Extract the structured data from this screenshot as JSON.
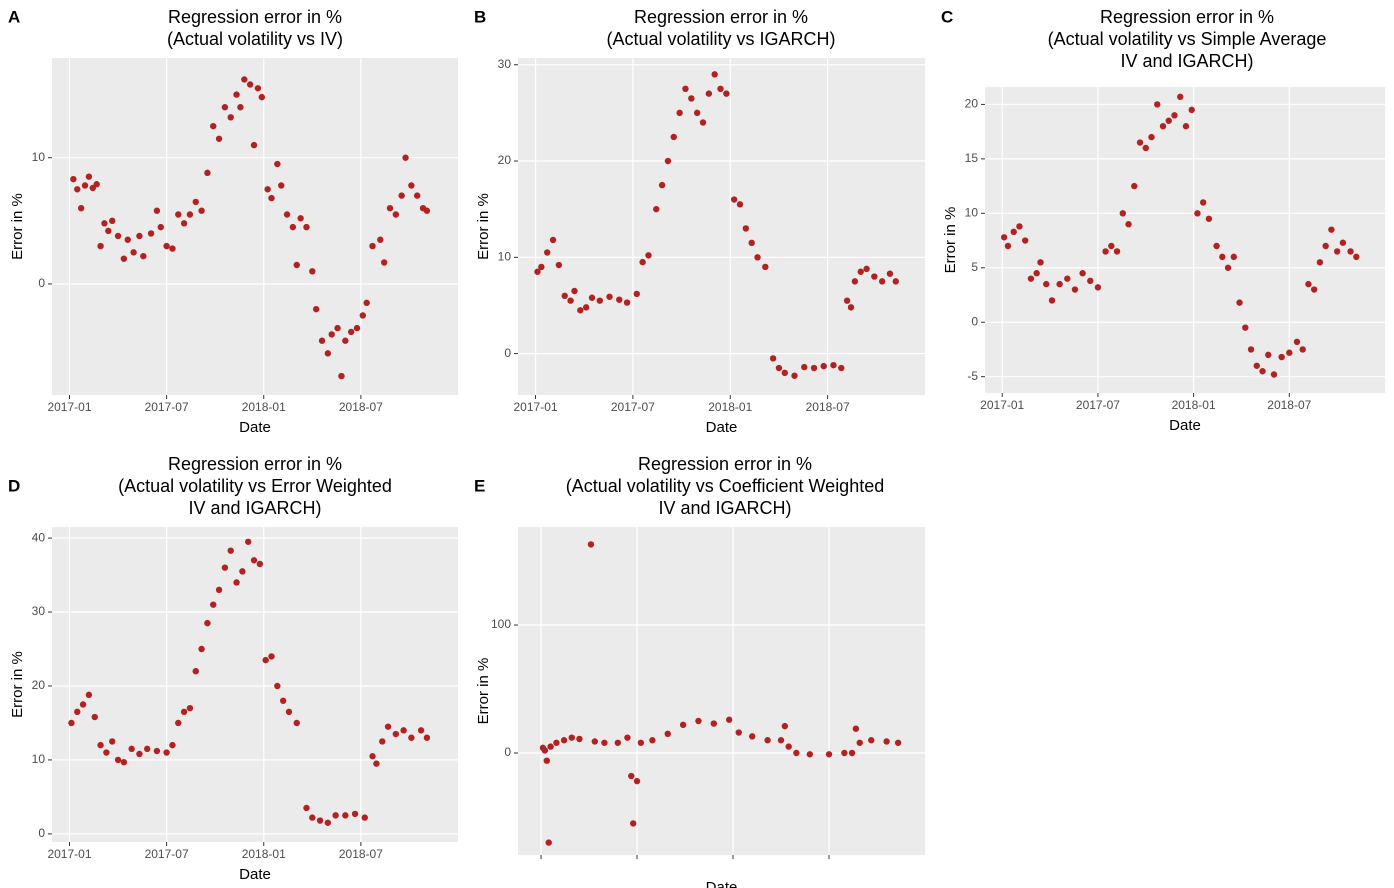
{
  "chart_data": [
    {
      "panel": "A",
      "type": "scatter",
      "title": [
        "Regression error in %",
        "(Actual volatility vs IV)"
      ],
      "x_label": "Date",
      "y_label": "Error in %",
      "color": "#b22222",
      "xlim": [
        2016.91,
        2019.0
      ],
      "ylim": [
        -8.8,
        17.9
      ],
      "xticks": [
        {
          "value": 2017.0,
          "label": "2017-01"
        },
        {
          "value": 2017.5,
          "label": "2017-07"
        },
        {
          "value": 2018.0,
          "label": "2018-01"
        },
        {
          "value": 2018.5,
          "label": "2018-07"
        }
      ],
      "yticks": [
        0,
        10
      ],
      "grid": true,
      "x": [
        2017.02,
        2017.04,
        2017.06,
        2017.08,
        2017.1,
        2017.12,
        2017.14,
        2017.16,
        2017.18,
        2017.2,
        2017.22,
        2017.25,
        2017.28,
        2017.3,
        2017.33,
        2017.36,
        2017.38,
        2017.42,
        2017.45,
        2017.47,
        2017.5,
        2017.53,
        2017.56,
        2017.59,
        2017.62,
        2017.65,
        2017.68,
        2017.71,
        2017.74,
        2017.77,
        2017.8,
        2017.83,
        2017.86,
        2017.88,
        2017.9,
        2017.93,
        2017.95,
        2017.97,
        2017.99,
        2018.02,
        2018.04,
        2018.07,
        2018.09,
        2018.12,
        2018.15,
        2018.17,
        2018.19,
        2018.22,
        2018.25,
        2018.27,
        2018.3,
        2018.33,
        2018.35,
        2018.38,
        2018.4,
        2018.42,
        2018.45,
        2018.48,
        2018.51,
        2018.53,
        2018.56,
        2018.6,
        2018.62,
        2018.65,
        2018.68,
        2018.71,
        2018.73,
        2018.76,
        2018.79,
        2018.82,
        2018.84
      ],
      "values": [
        8.3,
        7.5,
        6.0,
        7.8,
        8.5,
        7.6,
        7.9,
        3.0,
        4.8,
        4.2,
        5.0,
        3.8,
        2.0,
        3.5,
        2.5,
        3.8,
        2.2,
        4.0,
        5.8,
        4.5,
        3.0,
        2.8,
        5.5,
        4.8,
        5.5,
        6.5,
        5.8,
        8.8,
        12.5,
        11.5,
        14.0,
        13.2,
        15.0,
        14.0,
        16.2,
        15.8,
        11.0,
        15.5,
        14.8,
        7.5,
        6.8,
        9.5,
        7.8,
        5.5,
        4.5,
        1.5,
        5.2,
        4.5,
        1.0,
        -2.0,
        -4.5,
        -5.5,
        -4.0,
        -3.5,
        -7.3,
        -4.5,
        -3.8,
        -3.5,
        -2.5,
        -1.5,
        3.0,
        3.5,
        1.7,
        6.0,
        5.5,
        7.0,
        10.0,
        7.8,
        7.0,
        6.0,
        5.8
      ]
    },
    {
      "panel": "B",
      "type": "scatter",
      "title": [
        "Regression error in %",
        "(Actual volatility vs IGARCH)"
      ],
      "x_label": "Date",
      "y_label": "Error in %",
      "color": "#b22222",
      "xlim": [
        2016.91,
        2019.0
      ],
      "ylim": [
        -4.3,
        30.7
      ],
      "xticks": [
        {
          "value": 2017.0,
          "label": "2017-01"
        },
        {
          "value": 2017.5,
          "label": "2017-07"
        },
        {
          "value": 2018.0,
          "label": "2018-01"
        },
        {
          "value": 2018.5,
          "label": "2018-07"
        }
      ],
      "yticks": [
        0,
        10,
        20,
        30
      ],
      "grid": true,
      "x": [
        2017.01,
        2017.03,
        2017.06,
        2017.09,
        2017.12,
        2017.15,
        2017.18,
        2017.2,
        2017.23,
        2017.26,
        2017.29,
        2017.33,
        2017.38,
        2017.43,
        2017.47,
        2017.52,
        2017.55,
        2017.58,
        2017.62,
        2017.65,
        2017.68,
        2017.71,
        2017.74,
        2017.77,
        2017.8,
        2017.83,
        2017.86,
        2017.89,
        2017.92,
        2017.95,
        2017.98,
        2018.02,
        2018.05,
        2018.08,
        2018.11,
        2018.14,
        2018.18,
        2018.22,
        2018.25,
        2018.28,
        2018.33,
        2018.38,
        2018.43,
        2018.48,
        2018.53,
        2018.57,
        2018.6,
        2018.62,
        2018.64,
        2018.67,
        2018.7,
        2018.74,
        2018.78,
        2018.82,
        2018.85
      ],
      "values": [
        8.5,
        9,
        10.5,
        11.8,
        9.2,
        6,
        5.5,
        6.5,
        4.5,
        4.8,
        5.8,
        5.5,
        5.9,
        5.6,
        5.3,
        6.2,
        9.5,
        10.2,
        15,
        17.5,
        20,
        22.5,
        25,
        27.5,
        26.5,
        25,
        24,
        27,
        29,
        27.5,
        27,
        16,
        15.5,
        13,
        11.5,
        10,
        9,
        -0.5,
        -1.5,
        -2,
        -2.3,
        -1.4,
        -1.5,
        -1.3,
        -1.2,
        -1.5,
        5.5,
        4.8,
        7.5,
        8.5,
        8.8,
        8,
        7.5,
        8.3,
        7.5
      ]
    },
    {
      "panel": "C",
      "type": "scatter",
      "title": [
        "Regression error in %",
        "(Actual volatility vs Simple Average",
        "IV and IGARCH)"
      ],
      "x_label": "Date",
      "y_label": "Error in %",
      "color": "#b22222",
      "xlim": [
        2016.91,
        2019.0
      ],
      "ylim": [
        -6.5,
        21.6
      ],
      "xticks": [
        {
          "value": 2017.0,
          "label": "2017-01"
        },
        {
          "value": 2017.5,
          "label": "2017-07"
        },
        {
          "value": 2018.0,
          "label": "2018-01"
        },
        {
          "value": 2018.5,
          "label": "2018-07"
        }
      ],
      "yticks": [
        -5,
        0,
        5,
        10,
        15,
        20
      ],
      "grid": true,
      "x": [
        2017.01,
        2017.03,
        2017.06,
        2017.09,
        2017.12,
        2017.15,
        2017.18,
        2017.2,
        2017.23,
        2017.26,
        2017.3,
        2017.34,
        2017.38,
        2017.42,
        2017.46,
        2017.5,
        2017.54,
        2017.57,
        2017.6,
        2017.63,
        2017.66,
        2017.69,
        2017.72,
        2017.75,
        2017.78,
        2017.81,
        2017.84,
        2017.87,
        2017.9,
        2017.93,
        2017.96,
        2017.99,
        2018.02,
        2018.05,
        2018.08,
        2018.12,
        2018.15,
        2018.18,
        2018.21,
        2018.24,
        2018.27,
        2018.3,
        2018.33,
        2018.36,
        2018.39,
        2018.42,
        2018.46,
        2018.5,
        2018.54,
        2018.57,
        2018.6,
        2018.63,
        2018.66,
        2018.69,
        2018.72,
        2018.75,
        2018.78,
        2018.82,
        2018.85
      ],
      "values": [
        7.8,
        7,
        8.3,
        8.8,
        7.5,
        4,
        4.5,
        5.5,
        3.5,
        2,
        3.5,
        4,
        3,
        4.5,
        3.8,
        3.2,
        6.5,
        7,
        6.5,
        10,
        9,
        12.5,
        16.5,
        16,
        17,
        20,
        18,
        18.5,
        19,
        20.7,
        18,
        19.5,
        10,
        11,
        9.5,
        7,
        6,
        5,
        6,
        1.8,
        -0.5,
        -2.5,
        -4,
        -4.5,
        -3,
        -4.8,
        -3.2,
        -2.8,
        -1.8,
        -2.5,
        3.5,
        3,
        5.5,
        7,
        8.5,
        6.5,
        7.3,
        6.5,
        6
      ]
    },
    {
      "panel": "D",
      "type": "scatter",
      "title": [
        "Regression error in %",
        "(Actual volatility vs Error Weighted",
        "IV and IGARCH)"
      ],
      "x_label": "Date",
      "y_label": "Error in %",
      "color": "#b22222",
      "xlim": [
        2016.91,
        2019.0
      ],
      "ylim": [
        -1.1,
        41.5
      ],
      "xticks": [
        {
          "value": 2017.0,
          "label": "2017-01"
        },
        {
          "value": 2017.5,
          "label": "2017-07"
        },
        {
          "value": 2018.0,
          "label": "2018-01"
        },
        {
          "value": 2018.5,
          "label": "2018-07"
        }
      ],
      "yticks": [
        0,
        10,
        20,
        30,
        40
      ],
      "grid": true,
      "x": [
        2017.01,
        2017.04,
        2017.07,
        2017.1,
        2017.13,
        2017.16,
        2017.19,
        2017.22,
        2017.25,
        2017.28,
        2017.32,
        2017.36,
        2017.4,
        2017.45,
        2017.5,
        2017.53,
        2017.56,
        2017.59,
        2017.62,
        2017.65,
        2017.68,
        2017.71,
        2017.74,
        2017.77,
        2017.8,
        2017.83,
        2017.86,
        2017.89,
        2017.92,
        2017.95,
        2017.98,
        2018.01,
        2018.04,
        2018.07,
        2018.1,
        2018.13,
        2018.17,
        2018.22,
        2018.25,
        2018.29,
        2018.33,
        2018.37,
        2018.42,
        2018.47,
        2018.52,
        2018.56,
        2018.58,
        2018.61,
        2018.64,
        2018.68,
        2018.72,
        2018.76,
        2018.81,
        2018.84
      ],
      "values": [
        15,
        16.5,
        17.5,
        18.8,
        15.8,
        12,
        11,
        12.5,
        10,
        9.7,
        11.5,
        10.8,
        11.5,
        11.2,
        11,
        12,
        15,
        16.5,
        17,
        22,
        25,
        28.5,
        31,
        33,
        36,
        38.3,
        34,
        35.5,
        39.5,
        37,
        36.5,
        23.5,
        24,
        20,
        18,
        16.5,
        15,
        3.5,
        2.2,
        1.8,
        1.5,
        2.5,
        2.5,
        2.7,
        2.2,
        10.5,
        9.5,
        12.5,
        14.5,
        13.5,
        14,
        13,
        14,
        13
      ]
    },
    {
      "panel": "E",
      "type": "scatter",
      "title": [
        "Regression error in %",
        "(Actual volatility vs Coefficient Weighted",
        "IV and IGARCH)"
      ],
      "x_label": "Date",
      "y_label": "Error in %",
      "color": "#b22222",
      "xlim": [
        2016.88,
        2019.0
      ],
      "ylim": [
        -79.7,
        176.6
      ],
      "xticks": [
        2017.0,
        2017.5,
        2018.0,
        2018.5
      ],
      "xtick_labels": false,
      "yticks": [
        0,
        100
      ],
      "grid": true,
      "x": [
        2017.01,
        2017.02,
        2017.03,
        2017.04,
        2017.05,
        2017.08,
        2017.12,
        2017.16,
        2017.2,
        2017.26,
        2017.28,
        2017.33,
        2017.4,
        2017.45,
        2017.47,
        2017.48,
        2017.5,
        2017.52,
        2017.58,
        2017.66,
        2017.74,
        2017.82,
        2017.9,
        2017.98,
        2018.03,
        2018.1,
        2018.18,
        2018.25,
        2018.27,
        2018.29,
        2018.33,
        2018.4,
        2018.5,
        2018.58,
        2018.62,
        2018.64,
        2018.66,
        2018.72,
        2018.8,
        2018.86
      ],
      "values": [
        4,
        2,
        -6,
        -70,
        5,
        8,
        10,
        12,
        11,
        163,
        9,
        8,
        8,
        12,
        -18,
        -55,
        -22,
        8,
        10,
        15,
        22,
        25,
        23,
        26,
        16,
        13,
        10,
        10,
        21,
        5,
        0,
        -1,
        -1,
        0,
        0,
        19,
        8,
        10,
        9,
        8
      ]
    }
  ]
}
